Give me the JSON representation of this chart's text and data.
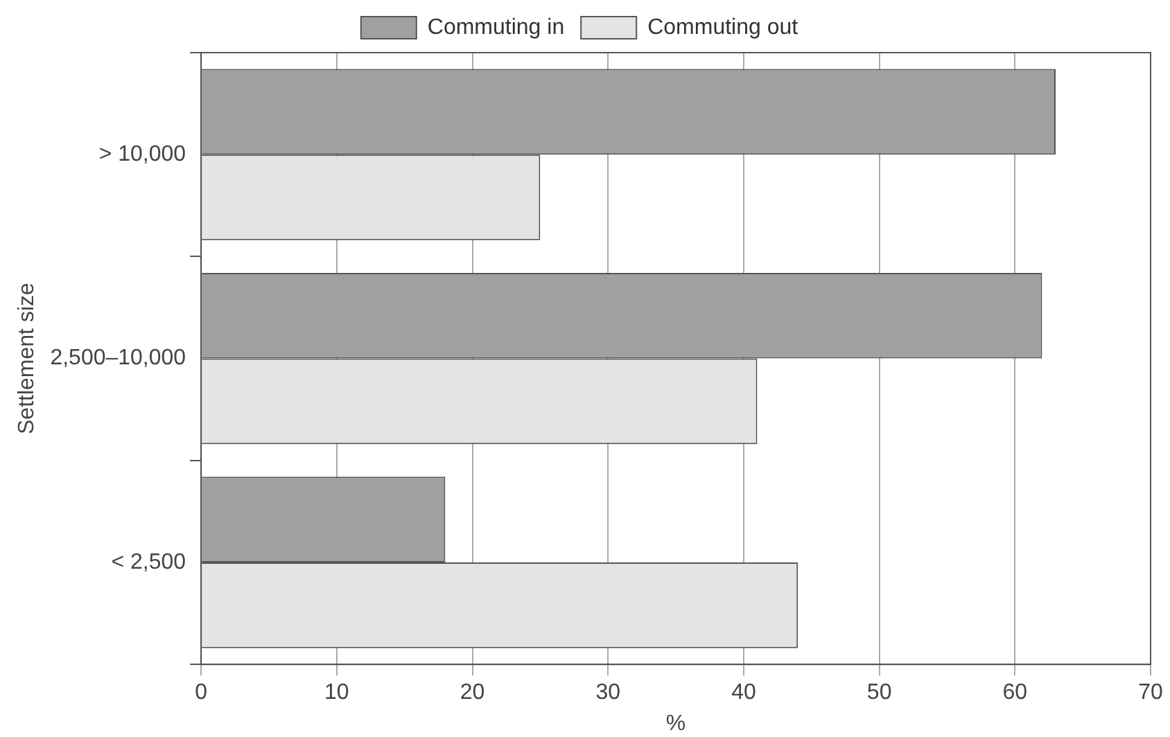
{
  "chart_data": {
    "type": "bar",
    "orientation": "horizontal",
    "xlabel": "%",
    "ylabel": "Settlement size",
    "categories": [
      "> 10,000",
      "2,500–10,000",
      "< 2,500"
    ],
    "series": [
      {
        "name": "Commuting in",
        "color": "#a0a0a0",
        "values": [
          63,
          62,
          18
        ]
      },
      {
        "name": "Commuting out",
        "color": "#e4e4e4",
        "values": [
          25,
          41,
          44
        ]
      }
    ],
    "xlim": [
      0,
      70
    ],
    "xticks": [
      0,
      10,
      20,
      30,
      40,
      50,
      60,
      70
    ],
    "grid": "x",
    "legend": "top"
  }
}
